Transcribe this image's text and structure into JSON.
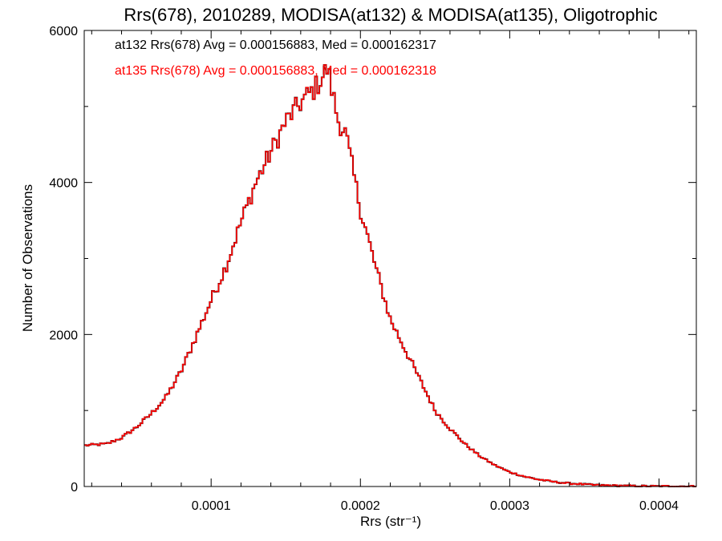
{
  "chart_data": {
    "type": "histogram",
    "title": "Rrs(678), 2010289, MODISA(at132) & MODISA(at135), Oligotrophic",
    "xlabel": "Rrs (str⁻¹)",
    "ylabel": "Number of Observations",
    "xlim": [
      1.5e-05,
      0.000425
    ],
    "ylim": [
      0,
      6000
    ],
    "x_ticks": [
      {
        "value": 0.0001,
        "label": "0.0001"
      },
      {
        "value": 0.0002,
        "label": "0.0002"
      },
      {
        "value": 0.0003,
        "label": "0.0003"
      },
      {
        "value": 0.0004,
        "label": "0.0004"
      }
    ],
    "y_ticks": [
      {
        "value": 0,
        "label": "0"
      },
      {
        "value": 2000,
        "label": "2000"
      },
      {
        "value": 4000,
        "label": "4000"
      },
      {
        "value": 6000,
        "label": "6000"
      }
    ],
    "x_minor_step": 2e-05,
    "y_minor_step": 1000,
    "annotations": [
      {
        "text": "at132 Rrs(678) Avg = 0.000156883, Med = 0.000162317",
        "color": "#000000"
      },
      {
        "text": "at135 Rrs(678) Avg = 0.000156883, Med = 0.000162318",
        "color": "#ff0000"
      }
    ],
    "series": [
      {
        "color": "#000000",
        "peak": {
          "x": 0.000178,
          "y": 5500
        },
        "points": [
          [
            1.5e-05,
            540
          ],
          [
            3e-05,
            560
          ],
          [
            4e-05,
            640
          ],
          [
            5e-05,
            780
          ],
          [
            6e-05,
            960
          ],
          [
            7e-05,
            1180
          ],
          [
            8e-05,
            1520
          ],
          [
            9e-05,
            1980
          ],
          [
            0.0001,
            2450
          ],
          [
            0.00011,
            2900
          ],
          [
            0.00012,
            3480
          ],
          [
            0.00013,
            4000
          ],
          [
            0.00014,
            4400
          ],
          [
            0.00015,
            4800
          ],
          [
            0.00016,
            5050
          ],
          [
            0.00017,
            5250
          ],
          [
            0.000178,
            5500
          ],
          [
            0.000185,
            4820
          ],
          [
            0.00019,
            4650
          ],
          [
            0.000195,
            4150
          ],
          [
            0.0002,
            3650
          ],
          [
            0.00021,
            2900
          ],
          [
            0.00022,
            2200
          ],
          [
            0.00023,
            1800
          ],
          [
            0.00024,
            1400
          ],
          [
            0.00025,
            1000
          ],
          [
            0.00026,
            760
          ],
          [
            0.00027,
            560
          ],
          [
            0.00028,
            400
          ],
          [
            0.00029,
            280
          ],
          [
            0.0003,
            190
          ],
          [
            0.00031,
            130
          ],
          [
            0.00032,
            90
          ],
          [
            0.00033,
            60
          ],
          [
            0.00034,
            42
          ],
          [
            0.00035,
            28
          ],
          [
            0.00036,
            18
          ],
          [
            0.00037,
            12
          ],
          [
            0.00038,
            8
          ],
          [
            0.00039,
            6
          ],
          [
            0.0004,
            4
          ],
          [
            0.00041,
            3
          ],
          [
            0.000425,
            2
          ]
        ]
      },
      {
        "color": "#ff0000",
        "peak": {
          "x": 0.000178,
          "y": 5500
        },
        "points": [
          [
            1.5e-05,
            540
          ],
          [
            3e-05,
            560
          ],
          [
            4e-05,
            640
          ],
          [
            5e-05,
            780
          ],
          [
            6e-05,
            960
          ],
          [
            7e-05,
            1180
          ],
          [
            8e-05,
            1520
          ],
          [
            9e-05,
            1980
          ],
          [
            0.0001,
            2450
          ],
          [
            0.00011,
            2900
          ],
          [
            0.00012,
            3480
          ],
          [
            0.00013,
            4000
          ],
          [
            0.00014,
            4400
          ],
          [
            0.00015,
            4800
          ],
          [
            0.00016,
            5050
          ],
          [
            0.00017,
            5250
          ],
          [
            0.000178,
            5500
          ],
          [
            0.000185,
            4820
          ],
          [
            0.00019,
            4650
          ],
          [
            0.000195,
            4150
          ],
          [
            0.0002,
            3650
          ],
          [
            0.00021,
            2900
          ],
          [
            0.00022,
            2200
          ],
          [
            0.00023,
            1800
          ],
          [
            0.00024,
            1400
          ],
          [
            0.00025,
            1000
          ],
          [
            0.00026,
            760
          ],
          [
            0.00027,
            560
          ],
          [
            0.00028,
            400
          ],
          [
            0.00029,
            280
          ],
          [
            0.0003,
            190
          ],
          [
            0.00031,
            130
          ],
          [
            0.00032,
            90
          ],
          [
            0.00033,
            60
          ],
          [
            0.00034,
            42
          ],
          [
            0.00035,
            28
          ],
          [
            0.00036,
            18
          ],
          [
            0.00037,
            12
          ],
          [
            0.00038,
            8
          ],
          [
            0.00039,
            6
          ],
          [
            0.0004,
            4
          ],
          [
            0.00041,
            3
          ],
          [
            0.000425,
            2
          ]
        ]
      }
    ]
  }
}
